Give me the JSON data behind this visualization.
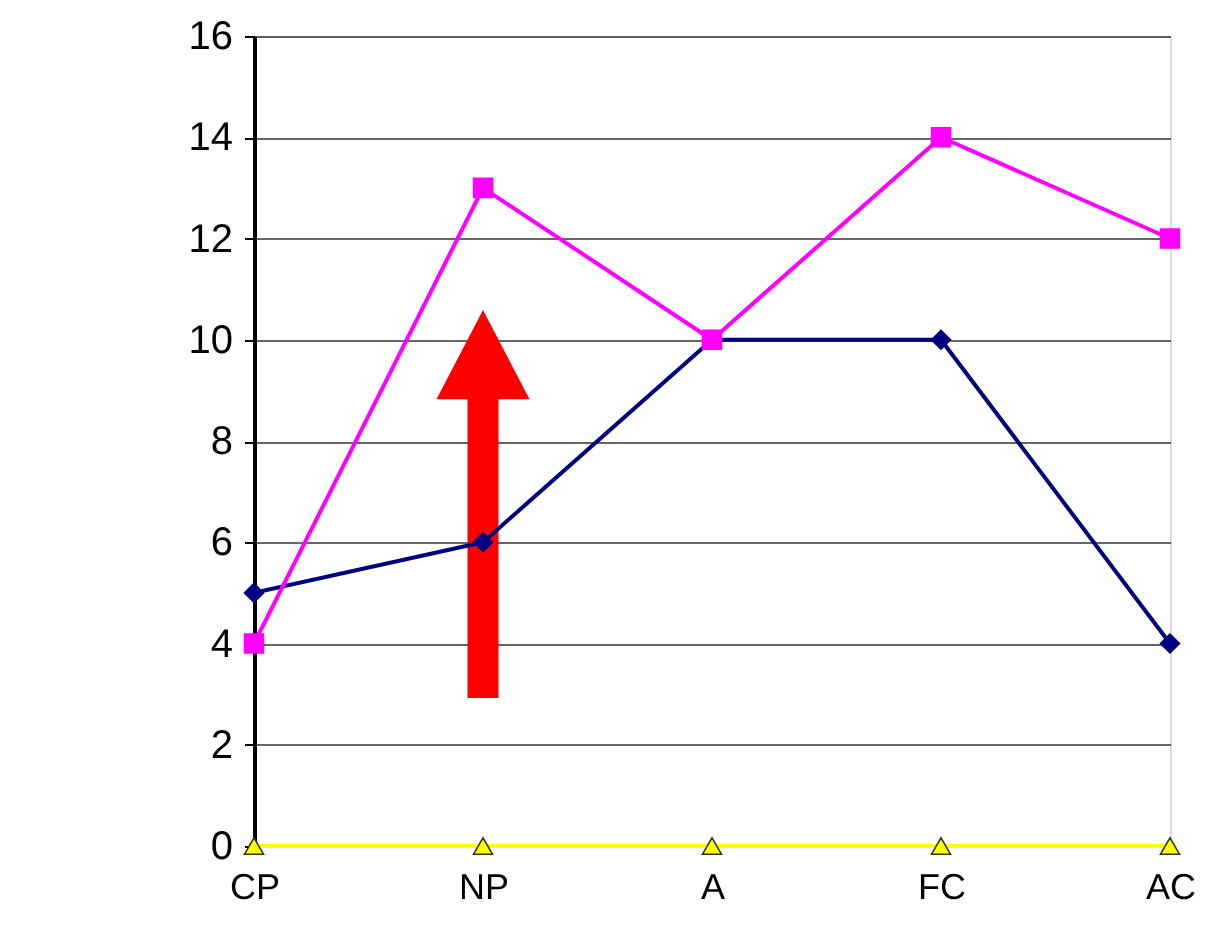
{
  "chart_data": {
    "type": "line",
    "categories": [
      "CP",
      "NP",
      "A",
      "FC",
      "AC"
    ],
    "series": [
      {
        "color": "#000080",
        "marker": "diamond",
        "values": [
          5,
          6,
          10,
          10,
          4
        ]
      },
      {
        "color": "#ff00ff",
        "marker": "square",
        "values": [
          4,
          13,
          10,
          14,
          12
        ]
      },
      {
        "color": "#ffff00",
        "marker": "triangle",
        "values": [
          0,
          0,
          0,
          0,
          0
        ]
      }
    ],
    "ylim": [
      0,
      16
    ],
    "yticks": [
      0,
      2,
      4,
      6,
      8,
      10,
      12,
      14,
      16
    ],
    "grid": "y"
  }
}
